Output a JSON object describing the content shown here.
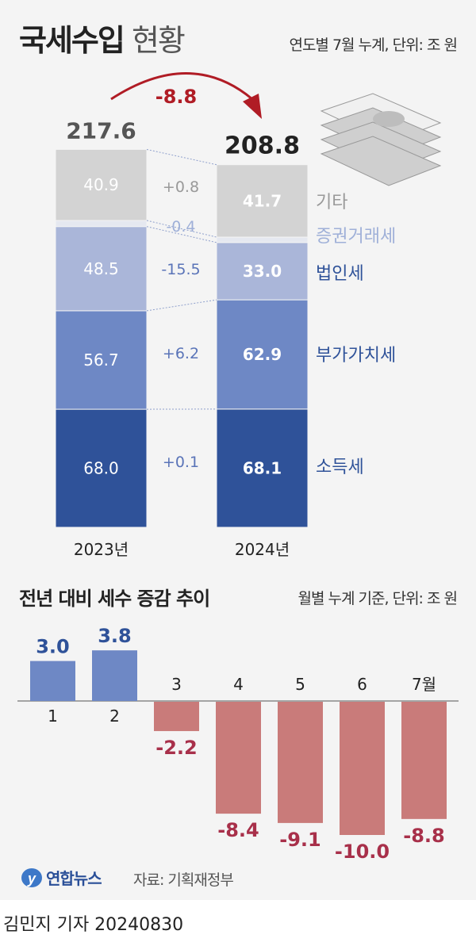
{
  "title": {
    "bold": "국세수입",
    "normal": "현황"
  },
  "unit_top": "연도별 7월 누계, 단위: 조 원",
  "subtitle": "전년 대비 세수 증감 추이",
  "unit_bottom": "월별 누계 기준, 단위: 조 원",
  "logo": "연합뉴스",
  "source": "자료: 기획재정부",
  "byline": "김민지 기자  20240830",
  "chart_data": [
    {
      "type": "bar",
      "stacked": true,
      "categories": [
        "2023년",
        "2024년"
      ],
      "totals": [
        "217.6",
        "208.8"
      ],
      "change_label": "-8.8",
      "series": [
        {
          "name": "소득세",
          "values": [
            68.0,
            68.1
          ],
          "diff": "+0.1",
          "color": "#2f5299",
          "label_color": "#2f5299"
        },
        {
          "name": "부가가치세",
          "values": [
            56.7,
            62.9
          ],
          "diff": "+6.2",
          "color": "#6e88c5",
          "label_color": "#2f5299"
        },
        {
          "name": "법인세",
          "values": [
            48.5,
            33.0
          ],
          "diff": "-15.5",
          "color": "#aab6d9",
          "label_color": "#2f5299"
        },
        {
          "name": "증권거래세",
          "values": [
            3.5,
            3.1
          ],
          "diff": "-0.4",
          "color": "#e5e8f0",
          "label_color": "#9fb0d8"
        },
        {
          "name": "기타",
          "values": [
            40.9,
            41.7
          ],
          "diff": "+0.8",
          "color": "#d3d3d3",
          "label_color": "#999999"
        }
      ],
      "arrow_color": "#b01c25"
    },
    {
      "type": "bar",
      "categories": [
        "1",
        "2",
        "3",
        "4",
        "5",
        "6",
        "7월"
      ],
      "values": [
        3.0,
        3.8,
        -2.2,
        -8.4,
        -9.1,
        -10.0,
        -8.8
      ],
      "positive_color": "#6e88c5",
      "negative_color": "#c97b7a",
      "positive_label_color": "#2f5299",
      "negative_label_color": "#a8304a"
    }
  ]
}
